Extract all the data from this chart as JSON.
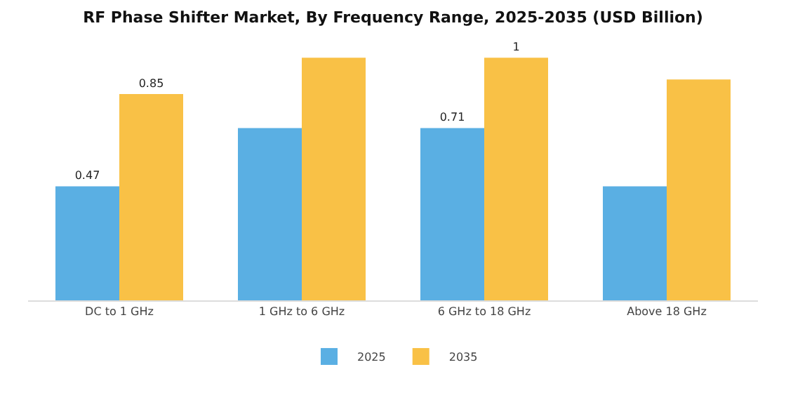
{
  "chart_data": {
    "type": "bar",
    "title": "RF Phase Shifter Market, By Frequency Range, 2025-2035 (USD Billion)",
    "categories": [
      "DC to 1 GHz",
      "1 GHz to 6 GHz",
      "6 GHz to 18 GHz",
      "Above 18 GHz"
    ],
    "series": [
      {
        "name": "2025",
        "color": "#5aafe3",
        "values": [
          0.47,
          0.71,
          0.71,
          0.47
        ],
        "value_labels": [
          "0.47",
          null,
          "0.71",
          null
        ]
      },
      {
        "name": "2035",
        "color": "#f9c146",
        "values": [
          0.85,
          1,
          1,
          0.91
        ],
        "value_labels": [
          "0.85",
          null,
          "1",
          null
        ]
      }
    ],
    "tick_labels": "x",
    "grid": false,
    "legend": "bottom"
  }
}
